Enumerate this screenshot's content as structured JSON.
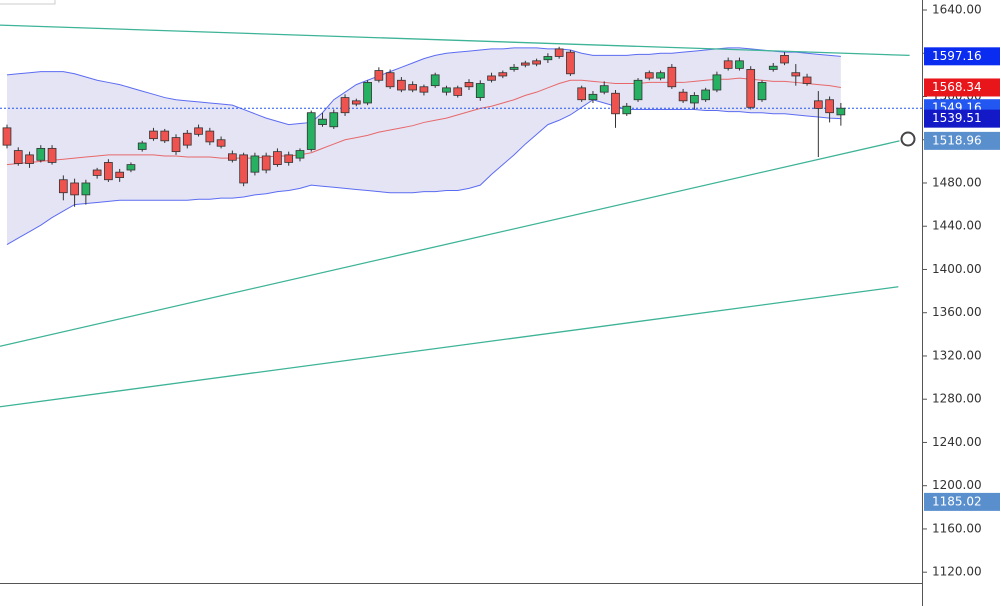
{
  "chart_data": {
    "type": "candlestick",
    "open": [
      1531,
      1510,
      1506,
      1501,
      1512,
      1483,
      1480,
      1469,
      1492,
      1499,
      1490,
      1492,
      1511,
      1528,
      1528,
      1522,
      1526,
      1531,
      1528,
      1520,
      1507,
      1506,
      1490,
      1505,
      1509,
      1506,
      1503,
      1511,
      1534,
      1532,
      1559,
      1556,
      1554,
      1584,
      1582,
      1575,
      1571,
      1569,
      1570,
      1564,
      1568,
      1573,
      1559,
      1579,
      1582,
      1585,
      1591,
      1593,
      1594,
      1604,
      1601,
      1568,
      1557,
      1564,
      1563,
      1544,
      1557,
      1582,
      1577,
      1587,
      1564,
      1554,
      1557,
      1566,
      1593,
      1586,
      1585,
      1557,
      1585,
      1598,
      1582,
      1578,
      1556,
      1557,
      1543
    ],
    "high": [
      1534,
      1513,
      1509,
      1515,
      1515,
      1487,
      1484,
      1483,
      1494,
      1502,
      1493,
      1499,
      1519,
      1531,
      1530,
      1525,
      1529,
      1534,
      1531,
      1523,
      1510,
      1508,
      1508,
      1508,
      1512,
      1509,
      1512,
      1547,
      1545,
      1548,
      1562,
      1558,
      1575,
      1587,
      1585,
      1578,
      1574,
      1571,
      1582,
      1570,
      1570,
      1576,
      1575,
      1582,
      1584,
      1590,
      1593,
      1595,
      1600,
      1606,
      1603,
      1570,
      1565,
      1574,
      1566,
      1554,
      1577,
      1584,
      1584,
      1590,
      1567,
      1564,
      1568,
      1583,
      1596,
      1596,
      1588,
      1575,
      1591,
      1601,
      1590,
      1581,
      1565,
      1560,
      1554
    ],
    "low": [
      1512,
      1496,
      1494,
      1499,
      1497,
      1464,
      1458,
      1460,
      1484,
      1481,
      1481,
      1490,
      1509,
      1519,
      1517,
      1506,
      1512,
      1523,
      1515,
      1512,
      1499,
      1477,
      1487,
      1489,
      1495,
      1496,
      1500,
      1509,
      1532,
      1530,
      1542,
      1551,
      1552,
      1573,
      1567,
      1564,
      1564,
      1561,
      1568,
      1561,
      1559,
      1566,
      1556,
      1573,
      1577,
      1583,
      1587,
      1588,
      1591,
      1595,
      1579,
      1555,
      1554,
      1562,
      1531,
      1542,
      1555,
      1575,
      1575,
      1567,
      1554,
      1548,
      1555,
      1564,
      1584,
      1584,
      1548,
      1555,
      1583,
      1589,
      1570,
      1570,
      1504,
      1536,
      1533
    ],
    "close": [
      1515,
      1498,
      1498,
      1512,
      1499,
      1471,
      1469,
      1480,
      1487,
      1483,
      1485,
      1497,
      1517,
      1521,
      1519,
      1509,
      1515,
      1525,
      1518,
      1514,
      1501,
      1480,
      1505,
      1492,
      1497,
      1499,
      1510,
      1545,
      1539,
      1545,
      1545,
      1553,
      1573,
      1575,
      1569,
      1566,
      1566,
      1564,
      1580,
      1568,
      1561,
      1569,
      1572,
      1575,
      1579,
      1587,
      1589,
      1590,
      1597,
      1597,
      1581,
      1557,
      1562,
      1570,
      1544,
      1551,
      1575,
      1577,
      1582,
      1569,
      1556,
      1561,
      1566,
      1580,
      1586,
      1593,
      1550,
      1573,
      1588,
      1591,
      1579,
      1572,
      1549,
      1545,
      1549.16
    ],
    "up_color": "#26b062",
    "down_color": "#ef5350",
    "bands": {
      "upper": [
        1580,
        1581,
        1582,
        1583,
        1583,
        1583,
        1581,
        1578,
        1575,
        1573,
        1571,
        1568,
        1565,
        1562,
        1559,
        1557,
        1556,
        1555,
        1554,
        1553,
        1552,
        1548,
        1544,
        1540,
        1537,
        1534,
        1535,
        1536,
        1545,
        1557,
        1564,
        1571,
        1575,
        1579,
        1583,
        1587,
        1591,
        1595,
        1598,
        1600,
        1601,
        1602,
        1603,
        1604,
        1604,
        1605,
        1605,
        1605,
        1604,
        1604,
        1603,
        1600,
        1598,
        1598,
        1598,
        1598,
        1599,
        1599,
        1600,
        1600,
        1601,
        1602,
        1603,
        1604,
        1605,
        1605,
        1604,
        1603,
        1602,
        1601,
        1601,
        1600,
        1599,
        1598,
        1597.16
      ],
      "middle": [
        1497,
        1498,
        1499,
        1500,
        1501,
        1502,
        1503,
        1504,
        1505,
        1506,
        1506,
        1506,
        1506,
        1506,
        1505,
        1505,
        1504,
        1504,
        1504,
        1503,
        1503,
        1503,
        1503,
        1504,
        1505,
        1505,
        1506,
        1508,
        1512,
        1516,
        1520,
        1522,
        1524,
        1527,
        1529,
        1531,
        1533,
        1536,
        1538,
        1540,
        1543,
        1546,
        1549,
        1551,
        1554,
        1557,
        1561,
        1564,
        1568,
        1572,
        1575,
        1575,
        1574,
        1573,
        1572,
        1572,
        1572,
        1573,
        1573,
        1573,
        1573,
        1574,
        1575,
        1576,
        1576,
        1577,
        1576,
        1575,
        1574,
        1574,
        1573,
        1572,
        1571,
        1570,
        1568.34
      ],
      "lower": [
        1423,
        1429,
        1435,
        1441,
        1448,
        1454,
        1460,
        1461,
        1462,
        1463,
        1464,
        1464,
        1464,
        1464,
        1464,
        1464,
        1464,
        1465,
        1465,
        1466,
        1466,
        1467,
        1469,
        1470,
        1472,
        1473,
        1475,
        1478,
        1477,
        1476,
        1475,
        1474,
        1473,
        1472,
        1471,
        1471,
        1471,
        1472,
        1472,
        1473,
        1473,
        1475,
        1478,
        1488,
        1497,
        1506,
        1516,
        1525,
        1534,
        1538,
        1543,
        1550,
        1557,
        1554,
        1551,
        1548,
        1548,
        1548,
        1548,
        1548,
        1548,
        1548,
        1547,
        1547,
        1546,
        1546,
        1545,
        1545,
        1544,
        1544,
        1543,
        1542,
        1541,
        1540,
        1539.51
      ],
      "band_color": "#5c6cf2",
      "fill_color": "#e4e4f4",
      "middle_color": "#e8686a"
    },
    "trendlines": [
      {
        "x": [
          -0.62,
          80.1
        ],
        "values": [
          1626,
          1598
        ],
        "color": "#3db397"
      },
      {
        "x": [
          -0.62,
          79.2
        ],
        "values": [
          1329,
          1518.96
        ],
        "color": "#3db397"
      },
      {
        "x": [
          -0.62,
          79.1
        ],
        "values": [
          1273,
          1384
        ],
        "color": "#3db397"
      }
    ],
    "price_markers": [
      {
        "value": 1597.16,
        "color": "#0a2cf0"
      },
      {
        "value": 1568.34,
        "color": "#e8161b"
      },
      {
        "value": 1549.16,
        "color": "#2257f2"
      },
      {
        "value": 1539.51,
        "color": "#1419c8"
      },
      {
        "value": 1518.96,
        "color": "#5a8fce"
      },
      {
        "value": 1185.02,
        "color": "#5a8fce"
      }
    ],
    "last_price_line": 1549.16,
    "xlim": [
      -0.62,
      81.2
    ],
    "ylim": [
      1110,
      1649.25
    ],
    "yticks": [
      {
        "value": 1120,
        "label": "1120.00"
      },
      {
        "value": 1160,
        "label": "1160.00"
      },
      {
        "value": 1200,
        "label": "1200.00"
      },
      {
        "value": 1240,
        "label": "1240.00"
      },
      {
        "value": 1280,
        "label": "1280.00"
      },
      {
        "value": 1320,
        "label": "1320.00"
      },
      {
        "value": 1360,
        "label": "1360.00"
      },
      {
        "value": 1400,
        "label": "1400.00"
      },
      {
        "value": 1440,
        "label": "1440.00"
      },
      {
        "value": 1480,
        "label": "1480.00"
      },
      {
        "value": 1520,
        "label": "1520.00"
      },
      {
        "value": 1560,
        "label": "1560.00"
      },
      {
        "value": 1600,
        "label": "1600.00"
      },
      {
        "value": 1640,
        "label": "1640.00"
      }
    ]
  }
}
